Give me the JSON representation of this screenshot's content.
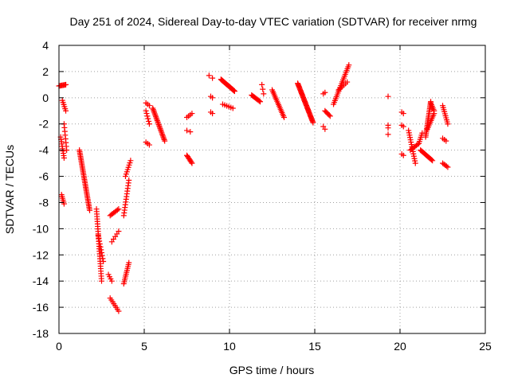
{
  "chart_data": {
    "type": "scatter",
    "title": "Day 251 of 2024, Sidereal Day-to-day VTEC variation (SDTVAR) for receiver nrmg",
    "xlabel": "GPS time / hours",
    "ylabel": "SDTVAR / TECUs",
    "xlim": [
      0,
      25
    ],
    "ylim": [
      -18,
      4
    ],
    "xticks": [
      0,
      5,
      10,
      15,
      20,
      25
    ],
    "yticks": [
      -18,
      -16,
      -14,
      -12,
      -10,
      -8,
      -6,
      -4,
      -2,
      0,
      2,
      4
    ],
    "grid": true,
    "marker": "+",
    "color": "#ff0000",
    "series": [
      {
        "name": "SDTVAR",
        "segments": [
          {
            "x0": 0.0,
            "y0": 0.9,
            "x1": 0.4,
            "y1": 1.0,
            "n": 8
          },
          {
            "x0": 0.1,
            "y0": -3.0,
            "x1": 0.3,
            "y1": -4.6,
            "n": 10
          },
          {
            "x0": 0.15,
            "y0": -7.4,
            "x1": 0.3,
            "y1": -8.1,
            "n": 6
          },
          {
            "x0": 0.2,
            "y0": -0.2,
            "x1": 0.4,
            "y1": -1.0,
            "n": 6
          },
          {
            "x0": 0.3,
            "y0": -2.0,
            "x1": 0.45,
            "y1": -4.0,
            "n": 8
          },
          {
            "x0": 1.2,
            "y0": -4.0,
            "x1": 1.8,
            "y1": -8.6,
            "n": 40
          },
          {
            "x0": 2.2,
            "y0": -8.5,
            "x1": 2.5,
            "y1": -14.0,
            "n": 30
          },
          {
            "x0": 2.3,
            "y0": -10.5,
            "x1": 2.6,
            "y1": -12.5,
            "n": 10
          },
          {
            "x0": 2.9,
            "y0": -13.5,
            "x1": 3.1,
            "y1": -14.0,
            "n": 4
          },
          {
            "x0": 3.0,
            "y0": -9.0,
            "x1": 3.5,
            "y1": -8.5,
            "n": 8
          },
          {
            "x0": 3.1,
            "y0": -11.0,
            "x1": 3.5,
            "y1": -10.2,
            "n": 5
          },
          {
            "x0": 3.0,
            "y0": -15.3,
            "x1": 3.5,
            "y1": -16.3,
            "n": 8
          },
          {
            "x0": 3.8,
            "y0": -14.2,
            "x1": 4.1,
            "y1": -12.6,
            "n": 12
          },
          {
            "x0": 3.8,
            "y0": -9.0,
            "x1": 4.1,
            "y1": -6.3,
            "n": 14
          },
          {
            "x0": 3.9,
            "y0": -6.0,
            "x1": 4.2,
            "y1": -4.8,
            "n": 8
          },
          {
            "x0": 5.1,
            "y0": -0.4,
            "x1": 5.3,
            "y1": -0.6,
            "n": 3
          },
          {
            "x0": 5.1,
            "y0": -1.0,
            "x1": 5.3,
            "y1": -2.0,
            "n": 6
          },
          {
            "x0": 5.1,
            "y0": -3.4,
            "x1": 5.3,
            "y1": -3.6,
            "n": 3
          },
          {
            "x0": 5.5,
            "y0": -0.8,
            "x1": 6.2,
            "y1": -3.3,
            "n": 25
          },
          {
            "x0": 7.5,
            "y0": -4.4,
            "x1": 7.8,
            "y1": -5.0,
            "n": 8
          },
          {
            "x0": 7.5,
            "y0": -1.5,
            "x1": 7.8,
            "y1": -1.2,
            "n": 4
          },
          {
            "x0": 7.5,
            "y0": -2.5,
            "x1": 7.7,
            "y1": -2.6,
            "n": 2
          },
          {
            "x0": 8.8,
            "y0": 1.7,
            "x1": 9.0,
            "y1": 1.5,
            "n": 2
          },
          {
            "x0": 8.9,
            "y0": 0.1,
            "x1": 9.0,
            "y1": 0.0,
            "n": 2
          },
          {
            "x0": 8.9,
            "y0": -1.1,
            "x1": 9.0,
            "y1": -1.2,
            "n": 2
          },
          {
            "x0": 9.5,
            "y0": 1.4,
            "x1": 10.3,
            "y1": 0.5,
            "n": 25
          },
          {
            "x0": 9.6,
            "y0": -0.5,
            "x1": 10.2,
            "y1": -0.8,
            "n": 6
          },
          {
            "x0": 11.3,
            "y0": 0.2,
            "x1": 11.8,
            "y1": -0.3,
            "n": 10
          },
          {
            "x0": 11.9,
            "y0": 1.0,
            "x1": 12.0,
            "y1": 0.3,
            "n": 3
          },
          {
            "x0": 12.5,
            "y0": 0.6,
            "x1": 13.2,
            "y1": -1.5,
            "n": 18
          },
          {
            "x0": 14.0,
            "y0": 1.1,
            "x1": 14.9,
            "y1": -1.9,
            "n": 40
          },
          {
            "x0": 15.5,
            "y0": 0.3,
            "x1": 15.6,
            "y1": 0.4,
            "n": 2
          },
          {
            "x0": 15.6,
            "y0": -1.0,
            "x1": 15.9,
            "y1": -1.4,
            "n": 6
          },
          {
            "x0": 15.5,
            "y0": -2.2,
            "x1": 15.6,
            "y1": -2.4,
            "n": 2
          },
          {
            "x0": 16.1,
            "y0": -0.5,
            "x1": 17.0,
            "y1": 2.5,
            "n": 22
          },
          {
            "x0": 16.4,
            "y0": 0.6,
            "x1": 16.9,
            "y1": 1.2,
            "n": 6
          },
          {
            "x0": 19.3,
            "y0": 0.1,
            "x1": 19.3,
            "y1": 0.2,
            "n": 1
          },
          {
            "x0": 19.3,
            "y0": -2.1,
            "x1": 19.3,
            "y1": -2.3,
            "n": 2
          },
          {
            "x0": 19.3,
            "y0": -2.8,
            "x1": 19.3,
            "y1": -2.9,
            "n": 1
          },
          {
            "x0": 20.1,
            "y0": -1.1,
            "x1": 20.2,
            "y1": -1.2,
            "n": 2
          },
          {
            "x0": 20.1,
            "y0": -2.1,
            "x1": 20.2,
            "y1": -2.2,
            "n": 2
          },
          {
            "x0": 20.1,
            "y0": -4.3,
            "x1": 20.2,
            "y1": -4.4,
            "n": 2
          },
          {
            "x0": 20.5,
            "y0": -2.5,
            "x1": 20.9,
            "y1": -5.0,
            "n": 15
          },
          {
            "x0": 20.6,
            "y0": -4.0,
            "x1": 21.1,
            "y1": -3.5,
            "n": 8
          },
          {
            "x0": 21.1,
            "y0": -3.5,
            "x1": 21.3,
            "y1": -2.7,
            "n": 6
          },
          {
            "x0": 21.2,
            "y0": -4.0,
            "x1": 21.9,
            "y1": -4.8,
            "n": 14
          },
          {
            "x0": 21.5,
            "y0": -3.0,
            "x1": 21.8,
            "y1": -0.3,
            "n": 22
          },
          {
            "x0": 21.6,
            "y0": -2.4,
            "x1": 22.0,
            "y1": -1.2,
            "n": 10
          },
          {
            "x0": 21.8,
            "y0": -0.4,
            "x1": 22.0,
            "y1": -1.0,
            "n": 6
          },
          {
            "x0": 22.5,
            "y0": -3.1,
            "x1": 22.7,
            "y1": -3.3,
            "n": 3
          },
          {
            "x0": 22.5,
            "y0": -0.6,
            "x1": 22.8,
            "y1": -2.0,
            "n": 10
          },
          {
            "x0": 22.5,
            "y0": -5.0,
            "x1": 22.8,
            "y1": -5.3,
            "n": 5
          }
        ]
      }
    ]
  }
}
